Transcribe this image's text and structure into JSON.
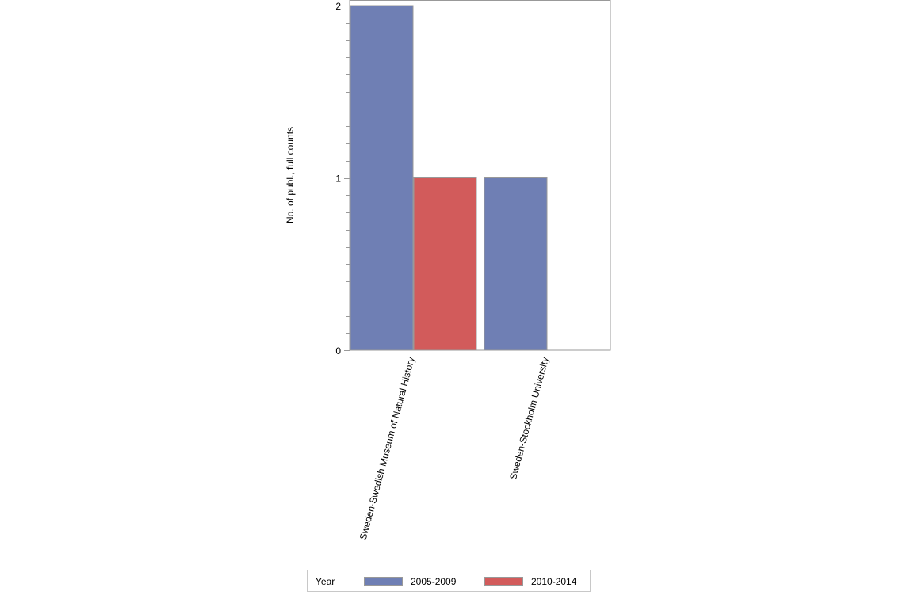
{
  "chart_data": {
    "type": "bar",
    "title": "",
    "xlabel": "",
    "ylabel": "No. of publ., full counts",
    "ylim": [
      0,
      2
    ],
    "yticks": [
      0,
      1,
      2
    ],
    "ytick_labels": [
      "0",
      "1",
      "2"
    ],
    "minor_tick_step": 0.1,
    "grid": false,
    "categories": [
      "Sweden-Swedish Museum of Natural History",
      "Sweden-Stockholm University"
    ],
    "series": [
      {
        "name": "2005-2009",
        "color": "#6f7fb4",
        "values": [
          2,
          1
        ]
      },
      {
        "name": "2010-2014",
        "color": "#d25b5b",
        "values": [
          1,
          0
        ]
      }
    ],
    "legend": {
      "title": "Year",
      "position": "bottom"
    }
  },
  "legend": {
    "title": "Year",
    "items": [
      {
        "label": "2005-2009",
        "color": "#6f7fb4"
      },
      {
        "label": "2010-2014",
        "color": "#d25b5b"
      }
    ]
  }
}
